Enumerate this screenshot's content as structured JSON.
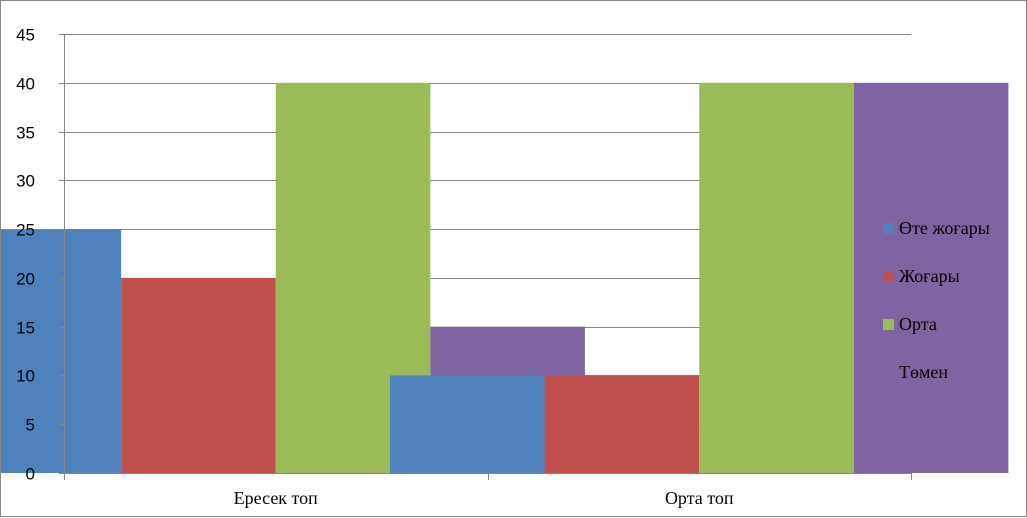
{
  "chart_data": {
    "type": "bar",
    "title": "",
    "xlabel": "",
    "ylabel": "",
    "categories": [
      "Ересек топ",
      "Орта топ"
    ],
    "series": [
      {
        "name": "Өте жоғары",
        "values": [
          25,
          10
        ],
        "color": "#4F81BD"
      },
      {
        "name": "Жоғары",
        "values": [
          20,
          10
        ],
        "color": "#C0504D"
      },
      {
        "name": "Орта",
        "values": [
          40,
          40
        ],
        "color": "#9BBB59"
      },
      {
        "name": "Төмен",
        "values": [
          15,
          40
        ],
        "color": "#8064A2"
      }
    ],
    "ylim": [
      0,
      45
    ],
    "yticks": [
      0,
      5,
      10,
      15,
      20,
      25,
      30,
      35,
      40,
      45
    ],
    "grid": true,
    "legend_position": "right"
  }
}
